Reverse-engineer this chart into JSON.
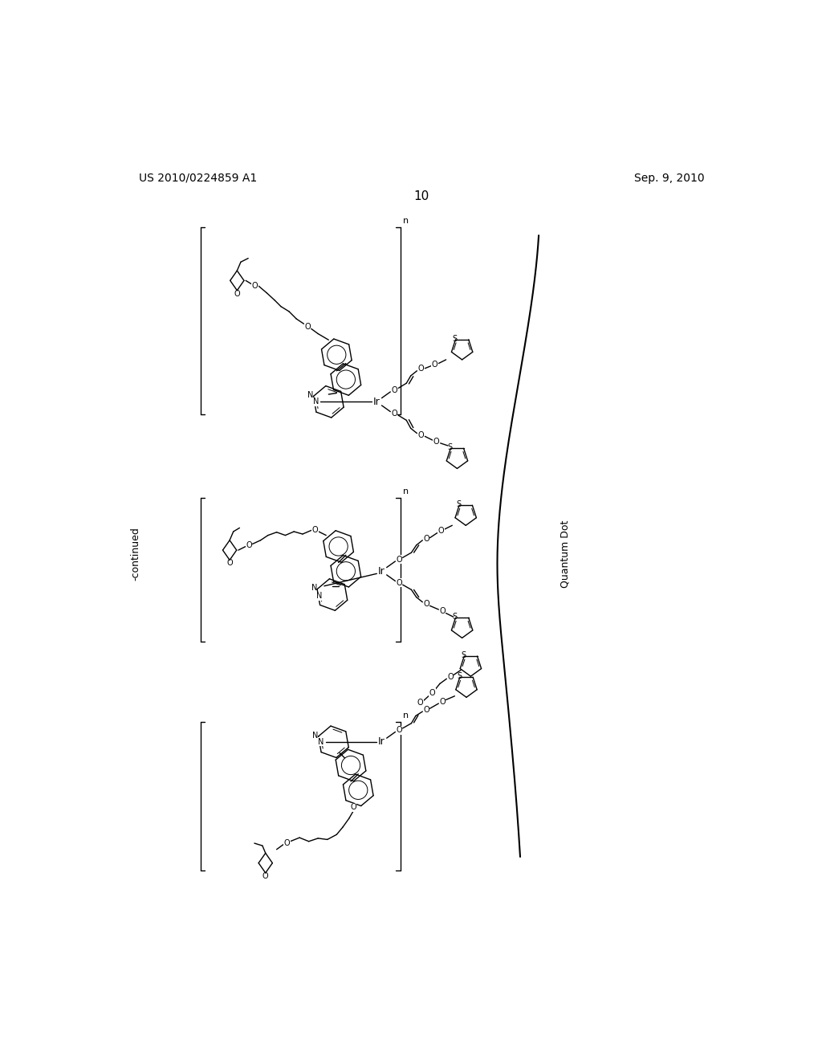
{
  "bg_color": "#ffffff",
  "page_number": "10",
  "patent_left": "US 2010/0224859 A1",
  "patent_right": "Sep. 9, 2010",
  "continued_label": "-continued",
  "quantum_dot_label": "Quantum Dot",
  "fig_width": 10.24,
  "fig_height": 13.2,
  "dpi": 100
}
